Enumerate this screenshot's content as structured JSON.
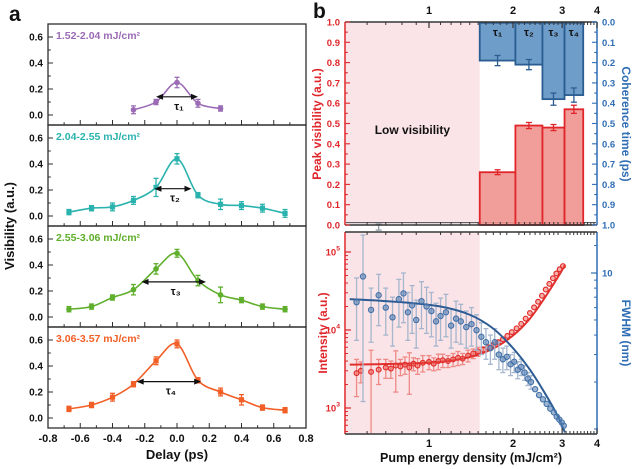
{
  "figure": {
    "panel_a_label": "a",
    "panel_b_label": "b"
  },
  "chart_data": [
    {
      "id": "panel-a",
      "type": "line",
      "xlabel": "Delay (ps)",
      "ylabel": "Visibility (a.u.)",
      "xlim": [
        -0.8,
        0.8
      ],
      "xticks": [
        -0.8,
        -0.6,
        -0.4,
        -0.2,
        0.0,
        0.2,
        0.4,
        0.6,
        0.8
      ],
      "yticks": [
        0.0,
        0.2,
        0.4,
        0.6
      ],
      "sub_ylim": [
        -0.08,
        0.7
      ],
      "grid": false,
      "subplots": [
        {
          "label": "1.52-2.04 mJ/cm²",
          "color": "#9b6bb5",
          "marker": "circle",
          "tau_label": "τ₁",
          "tau_arrow": {
            "x1": -0.13,
            "x2": 0.13,
            "y": 0.14
          },
          "x": [
            -0.27,
            -0.13,
            0.0,
            0.13,
            0.27
          ],
          "y": [
            0.04,
            0.1,
            0.25,
            0.09,
            0.05
          ],
          "err": [
            0.03,
            0.02,
            0.04,
            0.03,
            0.02
          ]
        },
        {
          "label": "2.04-2.55 mJ/cm²",
          "color": "#2ab3ae",
          "marker": "square",
          "tau_label": "τ₂",
          "tau_arrow": {
            "x1": -0.14,
            "x2": 0.09,
            "y": 0.21
          },
          "x": [
            -0.67,
            -0.53,
            -0.4,
            -0.27,
            -0.13,
            0.0,
            0.13,
            0.27,
            0.4,
            0.53,
            0.67
          ],
          "y": [
            0.03,
            0.06,
            0.07,
            0.12,
            0.22,
            0.44,
            0.16,
            0.09,
            0.08,
            0.06,
            0.02
          ],
          "err": [
            0.02,
            0.02,
            0.03,
            0.03,
            0.07,
            0.04,
            0.02,
            0.04,
            0.03,
            0.03,
            0.03
          ]
        },
        {
          "label": "2.55-3.06 mJ/cm²",
          "color": "#5fae2c",
          "marker": "circle",
          "tau_label": "τ₃",
          "tau_arrow": {
            "x1": -0.22,
            "x2": 0.18,
            "y": 0.27
          },
          "x": [
            -0.67,
            -0.53,
            -0.4,
            -0.27,
            -0.13,
            0.0,
            0.13,
            0.27,
            0.4,
            0.53,
            0.67
          ],
          "y": [
            0.06,
            0.08,
            0.15,
            0.21,
            0.37,
            0.49,
            0.28,
            0.17,
            0.13,
            0.08,
            0.06
          ],
          "err": [
            0.02,
            0.02,
            0.02,
            0.04,
            0.04,
            0.03,
            0.04,
            0.06,
            0.02,
            0.02,
            0.02
          ]
        },
        {
          "label": "3.06-3.57 mJ/cm²",
          "color": "#f15f27",
          "marker": "square",
          "tau_label": "τ₄",
          "tau_arrow": {
            "x1": -0.25,
            "x2": 0.15,
            "y": 0.28
          },
          "x": [
            -0.67,
            -0.53,
            -0.4,
            -0.27,
            -0.13,
            0.0,
            0.13,
            0.27,
            0.4,
            0.53,
            0.67
          ],
          "y": [
            0.07,
            0.1,
            0.16,
            0.26,
            0.44,
            0.57,
            0.29,
            0.2,
            0.14,
            0.08,
            0.06
          ],
          "err": [
            0.02,
            0.02,
            0.03,
            0.02,
            0.03,
            0.03,
            0.02,
            0.03,
            0.04,
            0.02,
            0.02
          ]
        }
      ]
    },
    {
      "id": "panel-b-top",
      "type": "bar",
      "xscale": "log",
      "xlim": [
        0.5,
        4
      ],
      "xticks_top": [
        1,
        2,
        3,
        4
      ],
      "ylabel_left": "Peak visibility (a.u.)",
      "ylabel_right": "Coherence time (ps)",
      "ylim_left": [
        0.0,
        1.0
      ],
      "ylim_right_inverted": [
        0.0,
        1.0
      ],
      "ytick_step": 0.1,
      "low_visibility_label": "Low visibility",
      "shaded_region": [
        0.5,
        1.52
      ],
      "shade_color": "#fae4e7",
      "red_color": "#e0262a",
      "red_fill": "#f0928e",
      "blue_color": "#2a5d91",
      "blue_fill": "#6f9dc9",
      "bar_edges": [
        [
          1.52,
          2.04
        ],
        [
          2.04,
          2.55
        ],
        [
          2.55,
          3.06
        ],
        [
          3.06,
          3.57
        ]
      ],
      "peak_visibility": {
        "values": [
          0.26,
          0.49,
          0.48,
          0.57
        ],
        "errors": [
          0.012,
          0.015,
          0.015,
          0.02
        ]
      },
      "coherence_time": {
        "values": [
          0.19,
          0.21,
          0.38,
          0.36
        ],
        "errors": [
          0.025,
          0.025,
          0.03,
          0.035
        ],
        "labels": [
          "τ₁",
          "τ₂",
          "τ₃",
          "τ₄"
        ]
      },
      "gray_zero_point": {
        "x": 0.66,
        "y": -0.01,
        "err": 0.015
      }
    },
    {
      "id": "panel-b-bottom",
      "type": "scatter",
      "xscale": "log",
      "yscale": "log",
      "xlabel": "Pump energy density (mJ/cm²)",
      "xlim": [
        0.5,
        4
      ],
      "xticks": [
        1,
        2,
        3,
        4
      ],
      "ylabel_left": "Intensity (a.u.)",
      "yticks_left": [
        "10^3",
        "10^4",
        "10^5"
      ],
      "yticks_left_values": [
        1000,
        10000,
        100000
      ],
      "ylabel_right": "FWHM (nm)",
      "yticks_right": [
        "10"
      ],
      "yticks_right_values": [
        10
      ],
      "shaded_region": [
        0.5,
        1.52
      ],
      "shade_color": "#fae4e7",
      "intensity_series": {
        "color": "#e0302e",
        "x": [
          0.55,
          0.57,
          0.62,
          0.66,
          0.7,
          0.73,
          0.76,
          0.79,
          0.82,
          0.85,
          0.88,
          0.91,
          0.95,
          1.0,
          1.04,
          1.08,
          1.12,
          1.17,
          1.22,
          1.27,
          1.32,
          1.38,
          1.44,
          1.5,
          1.57,
          1.63,
          1.7,
          1.77,
          1.84,
          1.91,
          1.98,
          2.06,
          2.14,
          2.22,
          2.3,
          2.38,
          2.46,
          2.54,
          2.62,
          2.7,
          2.78,
          2.86,
          2.94,
          3.02
        ],
        "y": [
          2800,
          3000,
          2900,
          3100,
          3300,
          3200,
          3500,
          3400,
          3600,
          3300,
          3700,
          3500,
          3800,
          3900,
          3700,
          4000,
          4100,
          4000,
          4200,
          4400,
          4300,
          4700,
          5000,
          5300,
          5600,
          6000,
          6400,
          7000,
          7600,
          8400,
          9400,
          10500,
          12000,
          14000,
          16500,
          19500,
          23000,
          27500,
          33000,
          39000,
          46000,
          53000,
          60000,
          66000
        ],
        "err": [
          1400,
          900,
          2600,
          1100,
          900,
          800,
          1900,
          800,
          900,
          1800,
          700,
          800,
          900,
          800,
          700,
          900,
          800,
          700,
          800,
          900,
          700,
          800,
          700,
          700,
          500,
          400,
          400,
          400,
          0,
          0,
          0,
          0,
          0,
          0,
          0,
          0,
          0,
          0,
          0,
          0,
          0,
          0,
          0,
          0
        ],
        "fit": [
          [
            0.52,
            3600
          ],
          [
            0.8,
            3700
          ],
          [
            1.1,
            3900
          ],
          [
            1.4,
            4500
          ],
          [
            1.7,
            5800
          ],
          [
            2.0,
            8500
          ],
          [
            2.3,
            14000
          ],
          [
            2.6,
            26000
          ],
          [
            2.9,
            48000
          ],
          [
            3.07,
            68000
          ]
        ]
      },
      "fwhm_series": {
        "color": "#3f6fa8",
        "x": [
          0.55,
          0.58,
          0.62,
          0.66,
          0.7,
          0.74,
          0.78,
          0.81,
          0.84,
          0.87,
          0.9,
          0.94,
          0.98,
          1.02,
          1.06,
          1.1,
          1.15,
          1.2,
          1.25,
          1.3,
          1.36,
          1.42,
          1.48,
          1.54,
          1.6,
          1.66,
          1.72,
          1.78,
          1.84,
          1.9,
          1.96,
          2.02,
          2.08,
          2.14,
          2.2,
          2.26,
          2.32,
          2.4,
          2.48,
          2.56,
          2.64,
          2.72,
          2.8,
          2.87,
          2.93,
          2.99,
          3.04
        ],
        "y": [
          6.5,
          9.5,
          5.8,
          7.2,
          6.0,
          5.2,
          6.8,
          7.4,
          5.6,
          6.2,
          5.0,
          6.6,
          6.1,
          5.7,
          4.9,
          5.3,
          5.6,
          4.6,
          5.1,
          4.9,
          4.5,
          4.7,
          4.3,
          3.9,
          3.6,
          3.3,
          3.6,
          3.0,
          2.8,
          2.9,
          2.6,
          2.7,
          2.4,
          2.5,
          2.3,
          2.1,
          2.0,
          1.8,
          1.65,
          1.55,
          1.45,
          1.35,
          1.28,
          1.2,
          1.15,
          1.1,
          1.05
        ],
        "err": [
          2.8,
          8.0,
          2.2,
          2.6,
          2.0,
          1.8,
          2.3,
          2.6,
          1.9,
          2.1,
          1.7,
          2.2,
          2.0,
          1.8,
          1.5,
          1.6,
          1.7,
          1.3,
          1.5,
          1.4,
          1.2,
          1.3,
          1.1,
          0.9,
          0.8,
          0.7,
          0.8,
          0.6,
          0.5,
          0.5,
          0.4,
          0.4,
          0.3,
          0.3,
          0.25,
          0.2,
          0.2,
          0,
          0,
          0,
          0,
          0,
          0,
          0,
          0,
          0,
          0
        ],
        "fit": [
          [
            0.52,
            6.8
          ],
          [
            0.8,
            6.5
          ],
          [
            1.1,
            6.1
          ],
          [
            1.4,
            5.4
          ],
          [
            1.7,
            4.4
          ],
          [
            2.0,
            3.3
          ],
          [
            2.3,
            2.4
          ],
          [
            2.6,
            1.7
          ],
          [
            2.9,
            1.2
          ],
          [
            3.07,
            0.95
          ]
        ]
      }
    }
  ]
}
